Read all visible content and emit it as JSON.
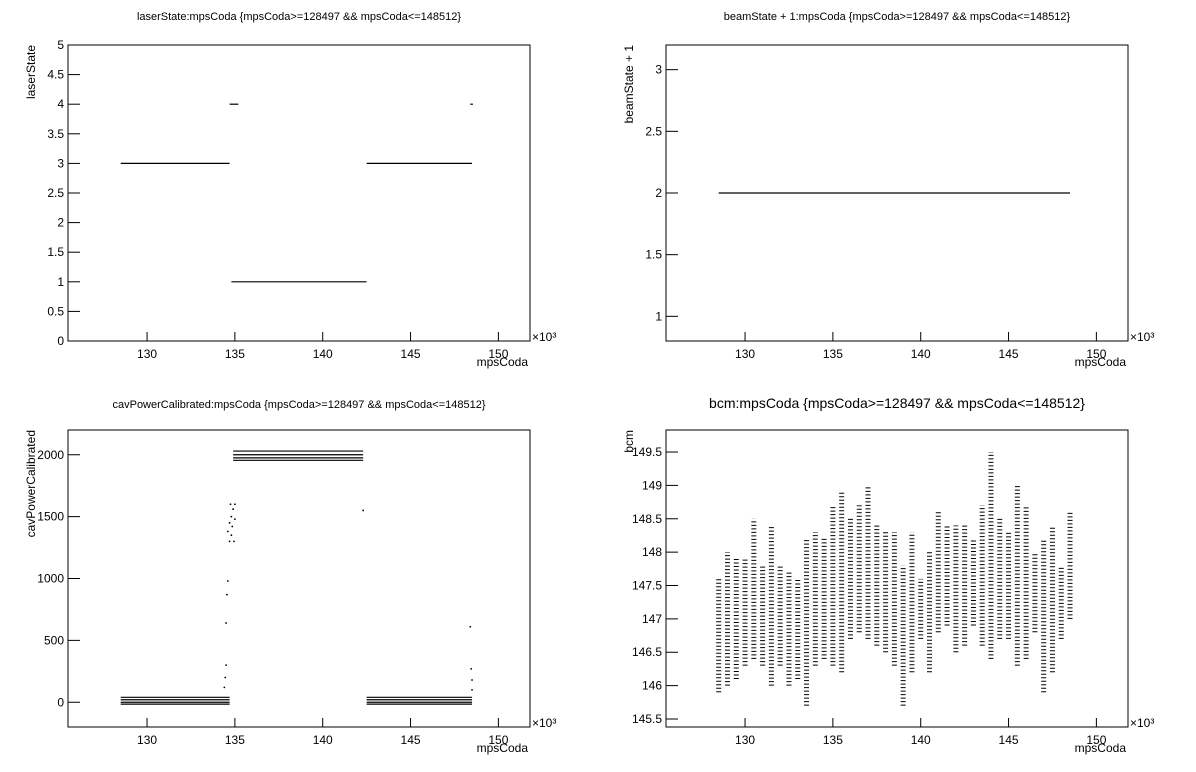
{
  "chart_data": [
    {
      "type": "segments",
      "title": "laserState:mpsCoda {mpsCoda>=128497 && mpsCoda<=148512}",
      "xlabel": "mpsCoda",
      "ylabel": "laserState",
      "x_exponent": "×10³",
      "xlim": [
        125.5,
        151.8
      ],
      "xticks": [
        130,
        135,
        140,
        145,
        150
      ],
      "ylim": [
        0,
        5
      ],
      "yticks": [
        0,
        0.5,
        1,
        1.5,
        2,
        2.5,
        3,
        3.5,
        4,
        4.5,
        5
      ],
      "color": "#000000",
      "segments": [
        {
          "x": [
            128.5,
            134.7
          ],
          "y": 3
        },
        {
          "x": [
            134.7,
            135.2
          ],
          "y": 4
        },
        {
          "x": [
            134.8,
            142.5
          ],
          "y": 1
        },
        {
          "x": [
            142.5,
            148.5
          ],
          "y": 3
        },
        {
          "x": [
            148.4,
            148.55
          ],
          "y": 4
        }
      ]
    },
    {
      "type": "segments",
      "title": "beamState + 1:mpsCoda {mpsCoda>=128497 && mpsCoda<=148512}",
      "xlabel": "mpsCoda",
      "ylabel": "beamState + 1",
      "x_exponent": "×10³",
      "xlim": [
        125.5,
        151.8
      ],
      "xticks": [
        130,
        135,
        140,
        145,
        150
      ],
      "ylim": [
        0.8,
        3.2
      ],
      "yticks": [
        1,
        1.5,
        2,
        2.5,
        3
      ],
      "color": "#000000",
      "segments": [
        {
          "x": [
            128.5,
            148.5
          ],
          "y": 2
        }
      ]
    },
    {
      "type": "segments",
      "title": "cavPowerCalibrated:mpsCoda {mpsCoda>=128497 && mpsCoda<=148512}",
      "xlabel": "mpsCoda",
      "ylabel": "cavPowerCalibrated",
      "x_exponent": "×10³",
      "xlim": [
        125.5,
        151.8
      ],
      "xticks": [
        130,
        135,
        140,
        145,
        150
      ],
      "ylim": [
        -200,
        2200
      ],
      "yticks": [
        0,
        500,
        1000,
        1500,
        2000
      ],
      "color": "#000000",
      "segments": [
        {
          "x": [
            128.5,
            134.7
          ],
          "y": 40
        },
        {
          "x": [
            128.5,
            134.7
          ],
          "y": 20
        },
        {
          "x": [
            128.5,
            134.7
          ],
          "y": 0
        },
        {
          "x": [
            128.5,
            134.7
          ],
          "y": -15
        },
        {
          "x": [
            134.9,
            142.3
          ],
          "y": 2030
        },
        {
          "x": [
            134.9,
            142.3
          ],
          "y": 2000
        },
        {
          "x": [
            134.9,
            142.3
          ],
          "y": 1975
        },
        {
          "x": [
            134.9,
            142.3
          ],
          "y": 1955
        },
        {
          "x": [
            142.5,
            148.5
          ],
          "y": 40
        },
        {
          "x": [
            142.5,
            148.5
          ],
          "y": 20
        },
        {
          "x": [
            142.5,
            148.5
          ],
          "y": 0
        },
        {
          "x": [
            142.5,
            148.5
          ],
          "y": -15
        }
      ],
      "points": {
        "x": [
          134.4,
          134.45,
          134.5,
          134.5,
          134.55,
          134.6,
          134.6,
          134.7,
          134.7,
          134.75,
          134.8,
          134.8,
          134.85,
          134.9,
          134.95,
          135.0,
          135.0,
          142.3,
          148.4,
          148.45,
          148.5,
          148.5
        ],
        "y": [
          120,
          200,
          300,
          640,
          870,
          980,
          1380,
          1300,
          1450,
          1600,
          1350,
          1500,
          1420,
          1560,
          1300,
          1480,
          1600,
          1550,
          610,
          270,
          180,
          100
        ]
      }
    },
    {
      "type": "range",
      "title": "bcm:mpsCoda {mpsCoda>=128497 && mpsCoda<=148512}",
      "xlabel": "mpsCoda",
      "ylabel": "bcm",
      "x_exponent": "×10³",
      "xlim": [
        125.5,
        151.8
      ],
      "xticks": [
        130,
        135,
        140,
        145,
        150
      ],
      "ylim": [
        145.38,
        149.83
      ],
      "yticks": [
        145.5,
        146,
        146.5,
        147,
        147.5,
        148,
        148.5,
        149,
        149.5
      ],
      "color": "#000000",
      "x": [
        128.5,
        129,
        129.5,
        130,
        130.5,
        131,
        131.5,
        132,
        132.5,
        133,
        133.5,
        134,
        134.5,
        135,
        135.5,
        136,
        136.5,
        137,
        137.5,
        138,
        138.5,
        139,
        139.5,
        140,
        140.5,
        141,
        141.5,
        142,
        142.5,
        143,
        143.5,
        144,
        144.5,
        145,
        145.5,
        146,
        146.5,
        147,
        147.5,
        148,
        148.5
      ],
      "ymin": [
        145.9,
        146.0,
        146.1,
        146.3,
        146.4,
        146.3,
        146.0,
        146.3,
        146.0,
        146.1,
        145.7,
        146.3,
        146.4,
        146.3,
        146.2,
        146.7,
        146.8,
        146.7,
        146.6,
        146.5,
        146.3,
        145.7,
        146.2,
        146.7,
        146.2,
        146.8,
        146.9,
        146.5,
        146.6,
        146.9,
        146.6,
        146.4,
        146.7,
        146.7,
        146.3,
        146.4,
        146.8,
        145.9,
        146.2,
        146.7,
        147.0
      ],
      "ymax": [
        147.6,
        148.0,
        147.9,
        147.9,
        148.5,
        147.8,
        148.4,
        147.8,
        147.7,
        147.6,
        148.2,
        148.3,
        148.2,
        148.7,
        148.9,
        148.5,
        148.7,
        149.0,
        148.4,
        148.3,
        148.3,
        147.8,
        148.3,
        147.6,
        148.0,
        148.6,
        148.4,
        148.4,
        148.4,
        148.2,
        148.7,
        149.5,
        148.5,
        148.3,
        149.0,
        148.7,
        148.0,
        148.2,
        148.4,
        147.8,
        148.6
      ]
    }
  ]
}
